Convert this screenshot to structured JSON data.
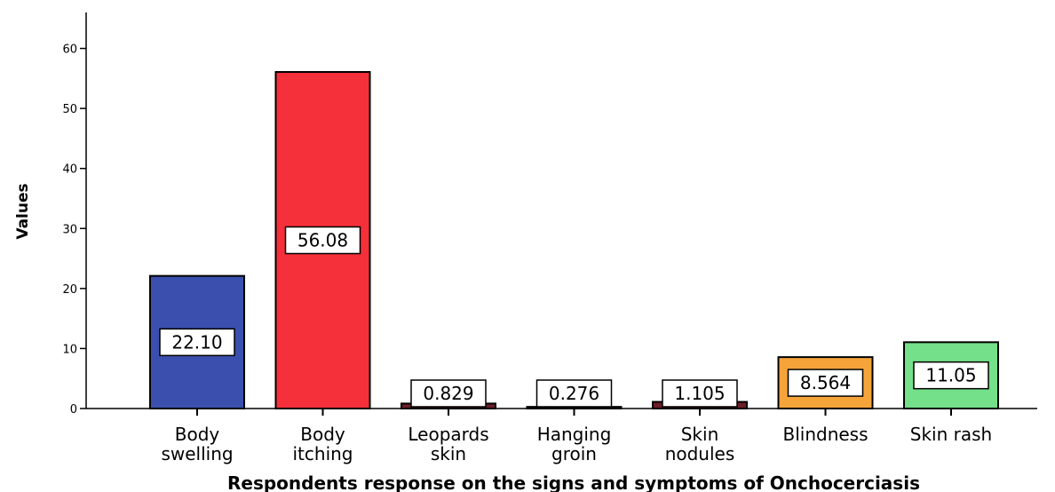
{
  "chart_data": {
    "type": "bar",
    "xlabel": "Respondents response on the signs and symptoms of Onchocerciasis",
    "ylabel": "Values",
    "ylim": [
      0,
      66
    ],
    "yticks": [
      0,
      10,
      20,
      30,
      40,
      50,
      60
    ],
    "grid": false,
    "legend": "none",
    "categories": [
      [
        "Body",
        "swelling"
      ],
      [
        "Body",
        "itching"
      ],
      [
        "Leopards",
        "skin"
      ],
      [
        "Hanging",
        "groin"
      ],
      [
        "Skin",
        "nodules"
      ],
      [
        "Blindness"
      ],
      [
        "Skin rash"
      ]
    ],
    "values": [
      22.1,
      56.08,
      0.829,
      0.276,
      1.105,
      8.564,
      11.05
    ],
    "data_labels": [
      "22.10",
      "56.08",
      "0.829",
      "0.276",
      "1.105",
      "8.564",
      "11.05"
    ],
    "colors": [
      "#3b4fae",
      "#f5303a",
      "#6b1f27",
      "#6b1f27",
      "#6b1f27",
      "#f5a43a",
      "#74e08a"
    ]
  }
}
